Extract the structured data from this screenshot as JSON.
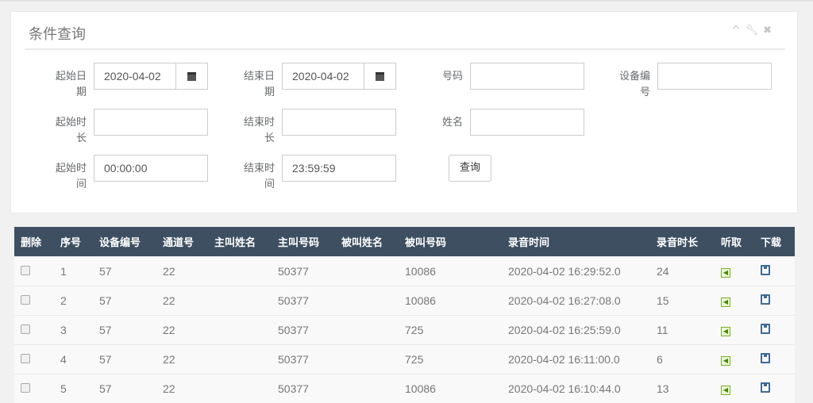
{
  "panel": {
    "title": "条件查询",
    "icons": [
      "chevron-up-icon",
      "wrench-icon",
      "close-icon"
    ]
  },
  "form": {
    "start_date_label": "起始日期",
    "start_date": "2020-04-02",
    "end_date_label": "结束日期",
    "end_date": "2020-04-02",
    "number_label": "号码",
    "number": "",
    "device_label": "设备编号",
    "device": "",
    "min_duration_label": "起始时长",
    "min_duration": "",
    "max_duration_label": "结束时长",
    "max_duration": "",
    "name_label": "姓名",
    "name": "",
    "start_time_label": "起始时间",
    "start_time": "00:00:00",
    "end_time_label": "结束时间",
    "end_time": "23:59:59",
    "query_label": "查询"
  },
  "table": {
    "headers": [
      "删除",
      "序号",
      "设备编号",
      "通道号",
      "主叫姓名",
      "主叫号码",
      "被叫姓名",
      "被叫号码",
      "录音时间",
      "录音时长",
      "听取",
      "下载"
    ],
    "rows": [
      {
        "no": "1",
        "device": "57",
        "channel": "22",
        "caller_name": "",
        "caller": "50377",
        "callee_name": "",
        "callee": "10086",
        "time": "2020-04-02 16:29:52.0",
        "duration": "24"
      },
      {
        "no": "2",
        "device": "57",
        "channel": "22",
        "caller_name": "",
        "caller": "50377",
        "callee_name": "",
        "callee": "10086",
        "time": "2020-04-02 16:27:08.0",
        "duration": "15"
      },
      {
        "no": "3",
        "device": "57",
        "channel": "22",
        "caller_name": "",
        "caller": "50377",
        "callee_name": "",
        "callee": "725",
        "time": "2020-04-02 16:25:59.0",
        "duration": "11"
      },
      {
        "no": "4",
        "device": "57",
        "channel": "22",
        "caller_name": "",
        "caller": "50377",
        "callee_name": "",
        "callee": "725",
        "time": "2020-04-02 16:11:00.0",
        "duration": "6"
      },
      {
        "no": "5",
        "device": "57",
        "channel": "22",
        "caller_name": "",
        "caller": "50377",
        "callee_name": "",
        "callee": "10086",
        "time": "2020-04-02 16:10:44.0",
        "duration": "13"
      }
    ]
  }
}
